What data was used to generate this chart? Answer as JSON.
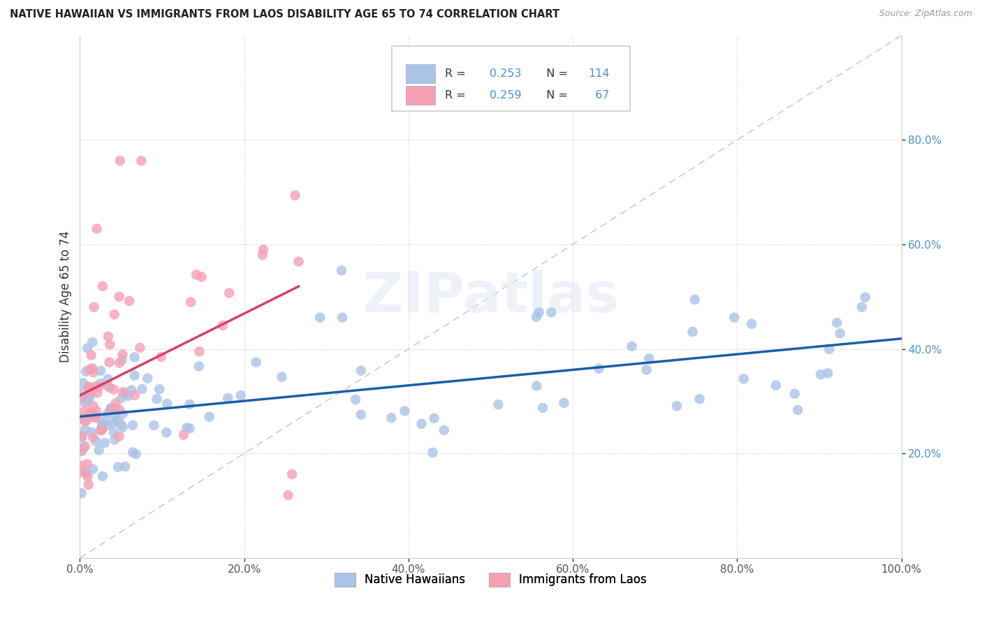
{
  "title": "NATIVE HAWAIIAN VS IMMIGRANTS FROM LAOS DISABILITY AGE 65 TO 74 CORRELATION CHART",
  "source": "Source: ZipAtlas.com",
  "ylabel": "Disability Age 65 to 74",
  "legend_label1": "Native Hawaiians",
  "legend_label2": "Immigrants from Laos",
  "R1": 0.253,
  "N1": 114,
  "R2": 0.259,
  "N2": 67,
  "color1": "#aac4e8",
  "color2": "#f5a0b5",
  "line1_color": "#1a5fa8",
  "line2_color": "#d94060",
  "diagonal_color": "#cccccc",
  "background_color": "#ffffff",
  "grid_color": "#dddddd",
  "xlim": [
    0,
    1.0
  ],
  "ylim": [
    0,
    1.0
  ],
  "xticks": [
    0.0,
    0.2,
    0.4,
    0.6,
    0.8,
    1.0
  ],
  "yticks": [
    0.2,
    0.4,
    0.6,
    0.8
  ],
  "xticklabels": [
    "0.0%",
    "20.0%",
    "40.0%",
    "60.0%",
    "80.0%",
    "100.0%"
  ],
  "yticklabels": [
    "20.0%",
    "40.0%",
    "60.0%",
    "80.0%"
  ],
  "ytick_color": "#4a90d9",
  "xtick_color": "#555555"
}
